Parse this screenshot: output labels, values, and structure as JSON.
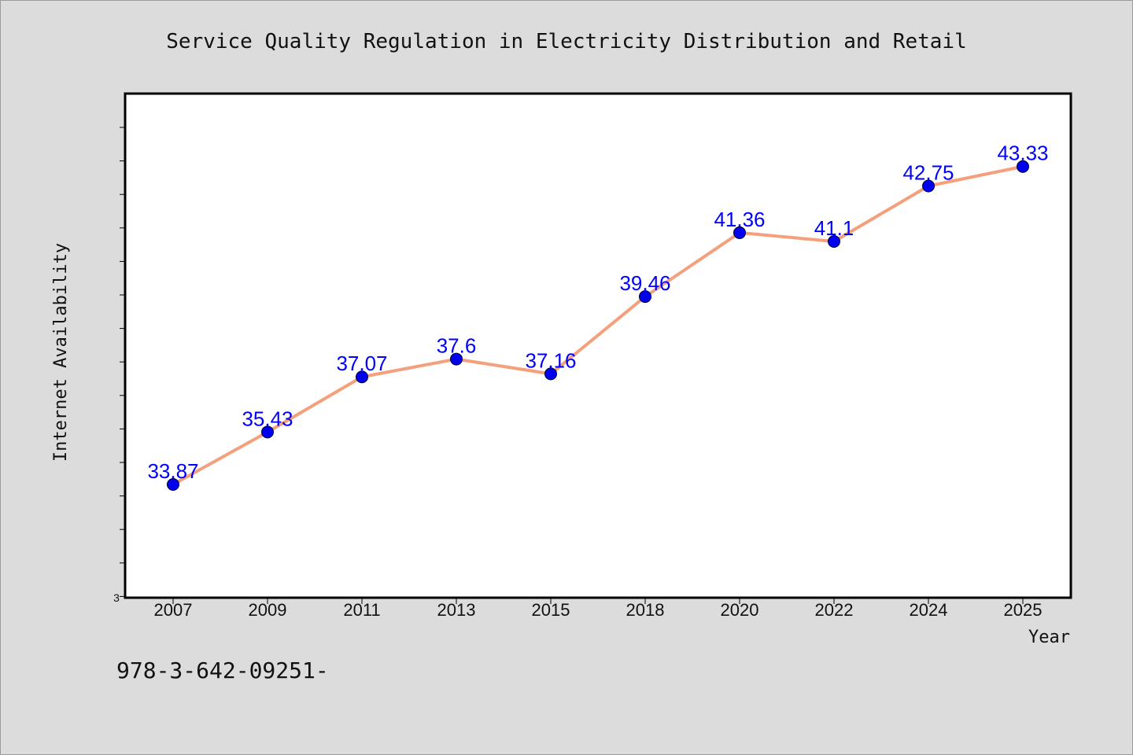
{
  "chart_data": {
    "type": "line",
    "title": "Service Quality Regulation in Electricity Distribution and Retail",
    "xlabel": "Year",
    "ylabel": "Internet Availability",
    "categories": [
      "2007",
      "2009",
      "2011",
      "2013",
      "2015",
      "2018",
      "2020",
      "2022",
      "2024",
      "2025"
    ],
    "series": [
      {
        "values": [
          33.87,
          35.43,
          37.07,
          37.6,
          37.16,
          39.46,
          41.36,
          41.1,
          42.75,
          43.33
        ],
        "labels": [
          "33.87",
          "35.43",
          "37.07",
          "37.6",
          "37.16",
          "39.46",
          "41.36",
          "41.1",
          "42.75",
          "43.33"
        ],
        "line_color": "#f4a07c",
        "marker_color": "#0000ee"
      }
    ],
    "y_min_label": "3",
    "ylim": [
      30.5,
      45.5
    ],
    "grid": false,
    "legend": "none"
  },
  "footnote": "978-3-642-09251-"
}
